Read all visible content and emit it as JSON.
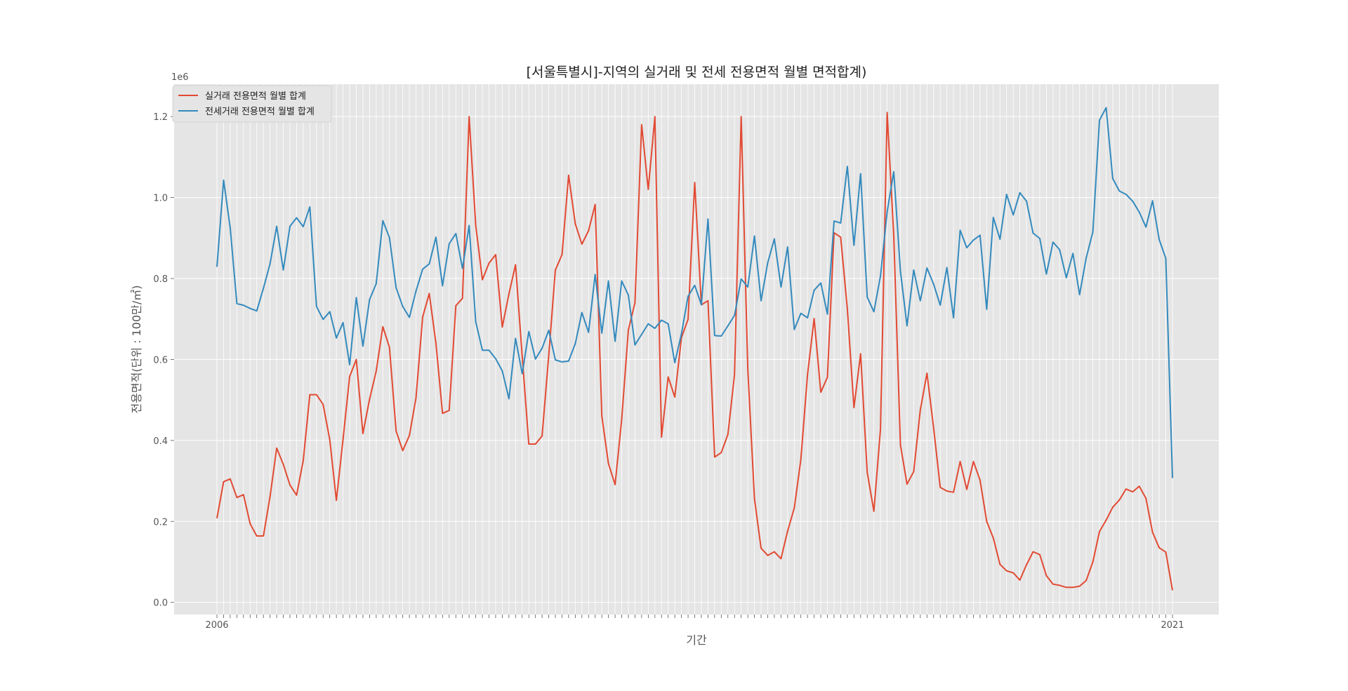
{
  "chart_data": {
    "type": "line",
    "title": "[서울특별시]-지역의 실거래 및 전세 전용면적 월별 면적합계)",
    "xlabel": "기간",
    "ylabel": "전용면적(단위 : 100만/㎡)",
    "y_scale_label": "1e6",
    "ylim": [
      -0.03,
      1.28
    ],
    "y_ticks": [
      0.0,
      0.2,
      0.4,
      0.6,
      0.8,
      1.0,
      1.2
    ],
    "y_tick_labels": [
      "0.0",
      "0.2",
      "0.4",
      "0.6",
      "0.8",
      "1.0",
      "1.2"
    ],
    "x_first_tick_label": "2006",
    "x_last_tick_label": "2021",
    "grid": true,
    "legend_position": "top-left",
    "series": [
      {
        "name": "실거래 전용면적 월별 합계",
        "color": "#E24A33",
        "values": [
          0.208,
          0.298,
          0.305,
          0.259,
          0.266,
          0.194,
          0.164,
          0.164,
          0.261,
          0.381,
          0.341,
          0.29,
          0.265,
          0.35,
          0.513,
          0.513,
          0.489,
          0.402,
          0.252,
          0.403,
          0.558,
          0.6,
          0.417,
          0.502,
          0.571,
          0.681,
          0.63,
          0.423,
          0.375,
          0.412,
          0.505,
          0.705,
          0.763,
          0.64,
          0.467,
          0.474,
          0.733,
          0.751,
          1.2,
          0.931,
          0.797,
          0.838,
          0.859,
          0.68,
          0.762,
          0.834,
          0.608,
          0.391,
          0.391,
          0.411,
          0.61,
          0.821,
          0.859,
          1.055,
          0.935,
          0.885,
          0.918,
          0.983,
          0.46,
          0.343,
          0.291,
          0.452,
          0.673,
          0.74,
          1.18,
          1.02,
          1.2,
          0.408,
          0.557,
          0.507,
          0.654,
          0.699,
          1.037,
          0.735,
          0.745,
          0.359,
          0.37,
          0.415,
          0.563,
          1.2,
          0.576,
          0.256,
          0.134,
          0.116,
          0.125,
          0.108,
          0.176,
          0.233,
          0.353,
          0.563,
          0.701,
          0.519,
          0.556,
          0.913,
          0.902,
          0.725,
          0.481,
          0.614,
          0.321,
          0.225,
          0.428,
          1.21,
          0.906,
          0.389,
          0.292,
          0.323,
          0.475,
          0.566,
          0.431,
          0.284,
          0.275,
          0.272,
          0.348,
          0.279,
          0.348,
          0.302,
          0.2,
          0.159,
          0.094,
          0.078,
          0.073,
          0.055,
          0.093,
          0.125,
          0.118,
          0.066,
          0.045,
          0.042,
          0.037,
          0.037,
          0.04,
          0.054,
          0.1,
          0.175,
          0.203,
          0.235,
          0.253,
          0.28,
          0.273,
          0.287,
          0.257,
          0.173,
          0.135,
          0.124,
          0.03
        ]
      },
      {
        "name": "전세거래 전용면적 월별 합계",
        "color": "#348ABD",
        "values": [
          0.829,
          1.043,
          0.925,
          0.738,
          0.734,
          0.726,
          0.72,
          0.776,
          0.836,
          0.929,
          0.821,
          0.929,
          0.95,
          0.928,
          0.977,
          0.731,
          0.699,
          0.718,
          0.653,
          0.691,
          0.587,
          0.753,
          0.633,
          0.748,
          0.787,
          0.943,
          0.901,
          0.777,
          0.731,
          0.704,
          0.769,
          0.823,
          0.836,
          0.902,
          0.782,
          0.886,
          0.911,
          0.825,
          0.931,
          0.693,
          0.623,
          0.623,
          0.602,
          0.572,
          0.503,
          0.652,
          0.565,
          0.669,
          0.601,
          0.628,
          0.672,
          0.599,
          0.594,
          0.596,
          0.639,
          0.716,
          0.667,
          0.81,
          0.665,
          0.794,
          0.645,
          0.794,
          0.759,
          0.636,
          0.662,
          0.688,
          0.677,
          0.697,
          0.688,
          0.592,
          0.663,
          0.756,
          0.783,
          0.735,
          0.947,
          0.659,
          0.658,
          0.683,
          0.709,
          0.799,
          0.779,
          0.905,
          0.745,
          0.839,
          0.898,
          0.779,
          0.878,
          0.674,
          0.714,
          0.703,
          0.771,
          0.789,
          0.712,
          0.942,
          0.937,
          1.077,
          0.882,
          1.059,
          0.754,
          0.718,
          0.806,
          0.965,
          1.064,
          0.818,
          0.683,
          0.821,
          0.745,
          0.826,
          0.786,
          0.734,
          0.827,
          0.703,
          0.919,
          0.876,
          0.895,
          0.907,
          0.724,
          0.951,
          0.897,
          1.008,
          0.957,
          1.012,
          0.991,
          0.912,
          0.899,
          0.811,
          0.89,
          0.871,
          0.802,
          0.862,
          0.76,
          0.851,
          0.915,
          1.191,
          1.222,
          1.047,
          1.016,
          1.008,
          0.991,
          0.964,
          0.927,
          0.992,
          0.896,
          0.85,
          0.307
        ]
      }
    ]
  }
}
